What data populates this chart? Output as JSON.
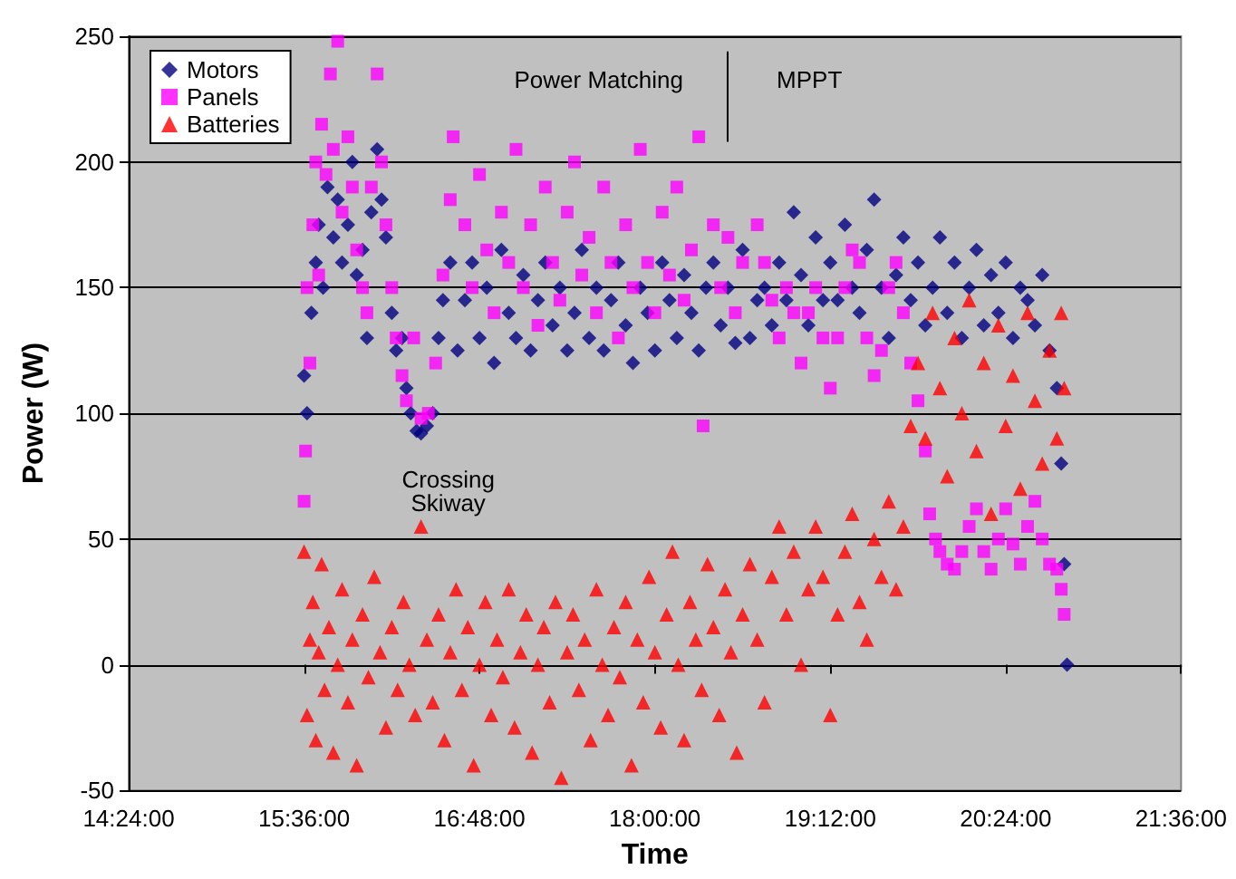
{
  "chart_data": {
    "type": "scatter",
    "xlabel": "Time",
    "ylabel": "Power (W)",
    "xlim": [
      14.4,
      21.6
    ],
    "xticks": [
      {
        "value": 14.4,
        "label": "14:24:00"
      },
      {
        "value": 15.6,
        "label": "15:36:00"
      },
      {
        "value": 16.8,
        "label": "16:48:00"
      },
      {
        "value": 18,
        "label": "18:00:00"
      },
      {
        "value": 19.2,
        "label": "19:12:00"
      },
      {
        "value": 20.4,
        "label": "20:24:00"
      },
      {
        "value": 21.6,
        "label": "21:36:00"
      }
    ],
    "ylim": [
      -50,
      250
    ],
    "yticks": [
      -50,
      0,
      50,
      100,
      150,
      200,
      250
    ],
    "grid": "y",
    "legend": "top left",
    "annotations": [
      "Power Matching",
      "MPPT",
      "Crossing Skiway"
    ],
    "ref_lines": [
      {
        "axis": "x",
        "value": 18.5,
        "color": "#000000"
      }
    ],
    "series": [
      {
        "name": "Motors",
        "color": "#000080",
        "marker": "diamond",
        "x": [
          15.6,
          15.62,
          15.65,
          15.68,
          15.7,
          15.73,
          15.76,
          15.8,
          15.83,
          15.86,
          15.9,
          15.93,
          15.96,
          16.0,
          16.03,
          16.06,
          16.1,
          16.13,
          16.16,
          16.2,
          16.23,
          16.27,
          16.3,
          16.33,
          16.37,
          16.4,
          16.44,
          16.48,
          16.52,
          16.55,
          16.6,
          16.65,
          16.7,
          16.75,
          16.8,
          16.85,
          16.9,
          16.95,
          17.0,
          17.05,
          17.1,
          17.15,
          17.2,
          17.25,
          17.3,
          17.35,
          17.4,
          17.45,
          17.5,
          17.55,
          17.6,
          17.65,
          17.7,
          17.75,
          17.8,
          17.85,
          17.9,
          17.95,
          18.0,
          18.05,
          18.1,
          18.15,
          18.2,
          18.25,
          18.3,
          18.35,
          18.4,
          18.45,
          18.5,
          18.55,
          18.6,
          18.65,
          18.7,
          18.75,
          18.8,
          18.85,
          18.9,
          18.95,
          19.0,
          19.05,
          19.1,
          19.15,
          19.2,
          19.25,
          19.3,
          19.35,
          19.4,
          19.45,
          19.5,
          19.55,
          19.6,
          19.65,
          19.7,
          19.75,
          19.8,
          19.85,
          19.9,
          19.95,
          20.0,
          20.05,
          20.1,
          20.15,
          20.2,
          20.25,
          20.3,
          20.35,
          20.4,
          20.45,
          20.5,
          20.55,
          20.6,
          20.65,
          20.7,
          20.75,
          20.78,
          20.8,
          20.82
        ],
        "values": [
          115,
          100,
          140,
          160,
          175,
          150,
          190,
          170,
          185,
          160,
          175,
          200,
          155,
          165,
          130,
          180,
          205,
          185,
          170,
          140,
          125,
          130,
          110,
          100,
          93,
          92,
          95,
          100,
          130,
          145,
          160,
          125,
          145,
          160,
          130,
          150,
          120,
          165,
          140,
          130,
          155,
          125,
          145,
          160,
          135,
          150,
          125,
          140,
          165,
          130,
          150,
          125,
          145,
          160,
          135,
          120,
          150,
          140,
          125,
          160,
          145,
          130,
          155,
          140,
          125,
          150,
          160,
          135,
          150,
          128,
          165,
          130,
          145,
          150,
          135,
          160,
          145,
          180,
          155,
          135,
          170,
          145,
          160,
          145,
          175,
          150,
          140,
          165,
          185,
          150,
          130,
          155,
          170,
          145,
          160,
          135,
          150,
          170,
          140,
          160,
          130,
          150,
          165,
          135,
          155,
          140,
          160,
          130,
          150,
          145,
          135,
          155,
          125,
          110,
          80,
          40,
          0
        ]
      },
      {
        "name": "Panels",
        "color": "#ff00ff",
        "marker": "square",
        "x": [
          15.6,
          15.61,
          15.62,
          15.64,
          15.66,
          15.68,
          15.7,
          15.72,
          15.75,
          15.78,
          15.8,
          15.83,
          15.86,
          15.9,
          15.93,
          15.96,
          16.0,
          16.03,
          16.06,
          16.1,
          16.13,
          16.16,
          16.2,
          16.23,
          16.27,
          16.3,
          16.35,
          16.4,
          16.45,
          16.5,
          16.55,
          16.6,
          16.62,
          16.7,
          16.75,
          16.8,
          16.85,
          16.9,
          16.95,
          17.0,
          17.05,
          17.1,
          17.15,
          17.2,
          17.25,
          17.3,
          17.35,
          17.4,
          17.45,
          17.5,
          17.55,
          17.6,
          17.65,
          17.7,
          17.75,
          17.8,
          17.85,
          17.9,
          17.95,
          18.0,
          18.05,
          18.1,
          18.15,
          18.2,
          18.25,
          18.3,
          18.33,
          18.4,
          18.45,
          18.5,
          18.55,
          18.6,
          18.7,
          18.75,
          18.8,
          18.85,
          18.9,
          18.95,
          19.0,
          19.05,
          19.1,
          19.15,
          19.2,
          19.25,
          19.3,
          19.35,
          19.4,
          19.45,
          19.5,
          19.55,
          19.6,
          19.65,
          19.7,
          19.75,
          19.8,
          19.85,
          19.88,
          19.92,
          19.95,
          20.0,
          20.05,
          20.1,
          20.15,
          20.2,
          20.25,
          20.3,
          20.35,
          20.4,
          20.45,
          20.5,
          20.55,
          20.6,
          20.65,
          20.7,
          20.75,
          20.78,
          20.8
        ],
        "values": [
          65,
          85,
          150,
          120,
          175,
          200,
          155,
          215,
          195,
          235,
          205,
          248,
          180,
          210,
          190,
          165,
          150,
          140,
          190,
          235,
          200,
          175,
          150,
          130,
          115,
          105,
          130,
          98,
          100,
          120,
          155,
          185,
          210,
          175,
          150,
          195,
          165,
          140,
          180,
          160,
          205,
          150,
          175,
          135,
          190,
          160,
          145,
          180,
          200,
          155,
          170,
          140,
          190,
          160,
          130,
          175,
          150,
          205,
          160,
          140,
          180,
          155,
          190,
          145,
          165,
          210,
          95,
          175,
          150,
          170,
          140,
          160,
          175,
          160,
          145,
          130,
          150,
          140,
          120,
          140,
          150,
          130,
          110,
          130,
          150,
          165,
          160,
          130,
          115,
          125,
          150,
          160,
          140,
          120,
          105,
          85,
          60,
          50,
          45,
          40,
          38,
          45,
          55,
          62,
          45,
          38,
          50,
          62,
          48,
          40,
          55,
          65,
          50,
          40,
          38,
          30,
          20
        ]
      },
      {
        "name": "Batteries",
        "color": "#ff0000",
        "marker": "triangle",
        "x": [
          15.6,
          15.62,
          15.64,
          15.66,
          15.68,
          15.7,
          15.72,
          15.74,
          15.77,
          15.8,
          15.83,
          15.86,
          15.9,
          15.93,
          15.96,
          16.0,
          16.04,
          16.08,
          16.12,
          16.16,
          16.2,
          16.24,
          16.28,
          16.32,
          16.36,
          16.4,
          16.44,
          16.48,
          16.52,
          16.56,
          16.6,
          16.64,
          16.68,
          16.72,
          16.76,
          16.8,
          16.84,
          16.88,
          16.92,
          16.96,
          17.0,
          17.04,
          17.08,
          17.12,
          17.16,
          17.2,
          17.24,
          17.28,
          17.32,
          17.36,
          17.4,
          17.44,
          17.48,
          17.52,
          17.56,
          17.6,
          17.64,
          17.68,
          17.72,
          17.76,
          17.8,
          17.84,
          17.88,
          17.92,
          17.96,
          18.0,
          18.04,
          18.08,
          18.12,
          18.16,
          18.2,
          18.24,
          18.28,
          18.32,
          18.36,
          18.4,
          18.44,
          18.48,
          18.52,
          18.56,
          18.6,
          18.65,
          18.7,
          18.75,
          18.8,
          18.85,
          18.9,
          18.95,
          19.0,
          19.05,
          19.1,
          19.15,
          19.2,
          19.25,
          19.3,
          19.35,
          19.4,
          19.45,
          19.5,
          19.55,
          19.6,
          19.65,
          19.7,
          19.75,
          19.8,
          19.85,
          19.9,
          19.95,
          20.0,
          20.05,
          20.1,
          20.15,
          20.2,
          20.25,
          20.3,
          20.35,
          20.4,
          20.45,
          20.5,
          20.55,
          20.6,
          20.65,
          20.7,
          20.75,
          20.78,
          20.8
        ],
        "values": [
          45,
          -20,
          10,
          25,
          -30,
          5,
          40,
          -10,
          15,
          -35,
          0,
          30,
          -15,
          10,
          -40,
          20,
          -5,
          35,
          5,
          -25,
          15,
          -10,
          25,
          0,
          -20,
          55,
          10,
          -15,
          20,
          -30,
          5,
          30,
          -10,
          15,
          -40,
          0,
          25,
          -20,
          10,
          -5,
          30,
          -25,
          5,
          20,
          -35,
          0,
          15,
          -15,
          25,
          -45,
          5,
          20,
          -10,
          10,
          -30,
          30,
          0,
          -20,
          15,
          -5,
          25,
          -40,
          10,
          -15,
          35,
          5,
          -25,
          20,
          45,
          0,
          -30,
          25,
          10,
          -10,
          40,
          15,
          -20,
          30,
          5,
          -35,
          20,
          40,
          10,
          -15,
          35,
          55,
          20,
          45,
          0,
          30,
          55,
          35,
          -20,
          20,
          45,
          60,
          25,
          10,
          50,
          35,
          65,
          30,
          55,
          95,
          120,
          90,
          140,
          110,
          75,
          130,
          100,
          145,
          85,
          120,
          60,
          135,
          95,
          115,
          70,
          140,
          105,
          80,
          125,
          90,
          140,
          110
        ]
      }
    ]
  }
}
